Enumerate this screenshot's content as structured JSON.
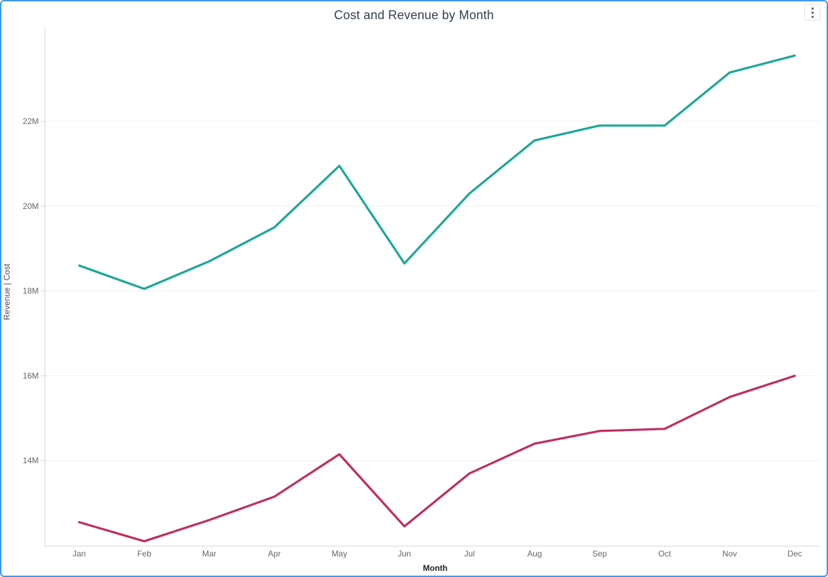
{
  "card": {
    "more_options": {
      "icon": "vertical-kebab-menu",
      "tooltip_label": "More options"
    }
  },
  "chart_data": {
    "type": "line",
    "title": "Cost and Revenue by Month",
    "xlabel": "Month",
    "ylabel": "Revenue  |  Cost",
    "legend": "none",
    "grid": "horizontal-only",
    "categories": [
      "Jan",
      "Feb",
      "Mar",
      "Apr",
      "May",
      "Jun",
      "Jul",
      "Aug",
      "Sep",
      "Oct",
      "Nov",
      "Dec"
    ],
    "series": [
      {
        "name": "Revenue",
        "color": "#18A899",
        "values_millions": [
          18.6,
          18.05,
          18.7,
          19.5,
          20.95,
          18.65,
          20.3,
          21.55,
          21.9,
          21.9,
          23.15,
          23.55
        ]
      },
      {
        "name": "Cost",
        "color": "#C22B5E",
        "values_millions": [
          12.55,
          12.1,
          12.6,
          13.15,
          14.15,
          12.45,
          13.7,
          14.4,
          14.7,
          14.75,
          15.5,
          16.0
        ]
      }
    ],
    "y_ticks": [
      {
        "label": "22M",
        "value_millions": 22
      },
      {
        "label": "20M",
        "value_millions": 20
      },
      {
        "label": "18M",
        "value_millions": 18
      },
      {
        "label": "16M",
        "value_millions": 16
      },
      {
        "label": "14M",
        "value_millions": 14
      }
    ],
    "ylim_millions": [
      12,
      24.2
    ],
    "colors": {
      "selection_border": "#4096EB",
      "gridline": "#F0F0F0",
      "axis_line": "#D6D6D6",
      "tick_label": "#666666",
      "title_text": "#333E50"
    }
  }
}
